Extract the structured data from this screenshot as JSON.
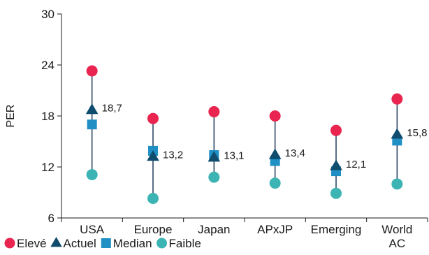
{
  "chart_data": {
    "type": "scatter",
    "title": "",
    "xlabel": "",
    "ylabel": "PER",
    "ylim": [
      6,
      30
    ],
    "yticks": [
      6,
      12,
      18,
      24,
      30
    ],
    "grid": false,
    "legend_position": "bottom-left",
    "categories": [
      {
        "label_lines": [
          "USA"
        ]
      },
      {
        "label_lines": [
          "Europe"
        ]
      },
      {
        "label_lines": [
          "Japan"
        ]
      },
      {
        "label_lines": [
          "APxJP"
        ]
      },
      {
        "label_lines": [
          "Emerging"
        ]
      },
      {
        "label_lines": [
          "World",
          "AC"
        ]
      }
    ],
    "series": [
      {
        "name": "Elevé",
        "marker": "circle",
        "color": "#e8244f",
        "values": [
          23.3,
          17.7,
          18.5,
          18.0,
          16.3,
          20.0
        ]
      },
      {
        "name": "Actuel",
        "marker": "triangle",
        "color": "#0f4c6e",
        "values": [
          18.7,
          13.2,
          13.1,
          13.4,
          12.1,
          15.8
        ]
      },
      {
        "name": "Median",
        "marker": "square",
        "color": "#1f8fc4",
        "values": [
          17.0,
          13.9,
          13.4,
          12.7,
          11.5,
          15.1
        ]
      },
      {
        "name": "Faible",
        "marker": "circle",
        "color": "#3bb4b3",
        "values": [
          11.1,
          8.3,
          10.8,
          10.1,
          8.9,
          10.0
        ]
      }
    ],
    "actuel_labels": [
      "18,7",
      "13,2",
      "13,1",
      "13,4",
      "12,1",
      "15,8"
    ],
    "axis_color": "#1a1a1a",
    "range_line_color": "#1f3b5a"
  }
}
